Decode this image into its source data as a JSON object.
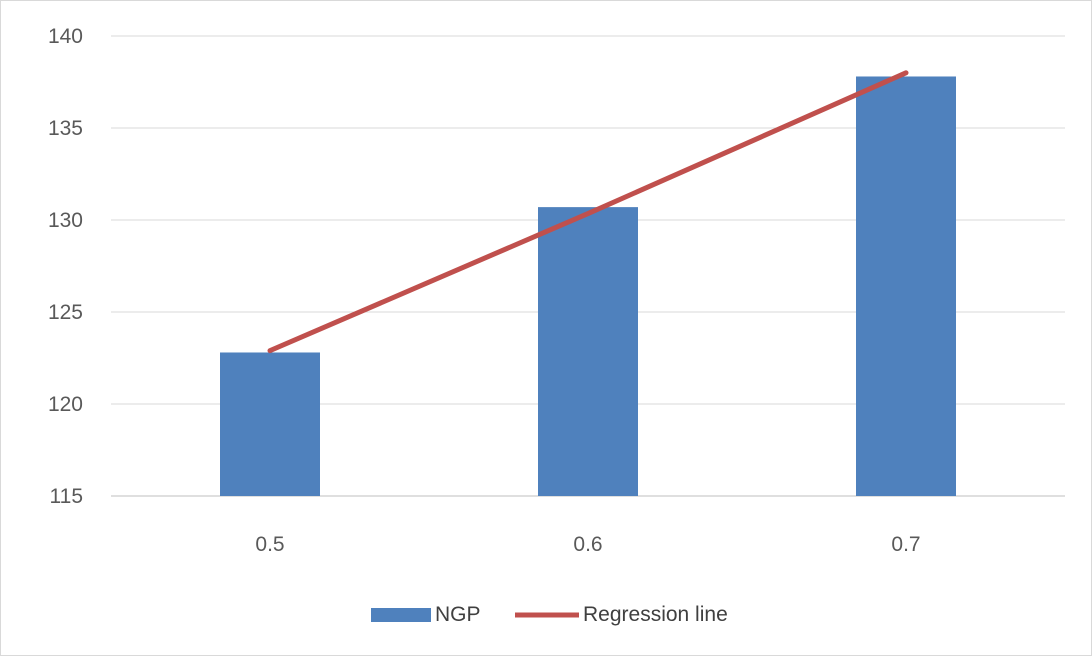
{
  "chart_data": {
    "type": "bar",
    "title": "",
    "xlabel": "",
    "ylabel": "",
    "categories": [
      "0.5",
      "0.6",
      "0.7"
    ],
    "series": [
      {
        "name": "NGP",
        "type": "bar",
        "values": [
          122.8,
          130.7,
          137.8
        ],
        "color": "#4f81bd"
      },
      {
        "name": "Regression line",
        "type": "line",
        "values": [
          122.9,
          130.35,
          138.0
        ],
        "color": "#c0504d"
      }
    ],
    "ylim": [
      115,
      140
    ],
    "yticks": [
      115,
      120,
      125,
      130,
      135,
      140
    ],
    "grid": true,
    "legend_position": "bottom"
  }
}
